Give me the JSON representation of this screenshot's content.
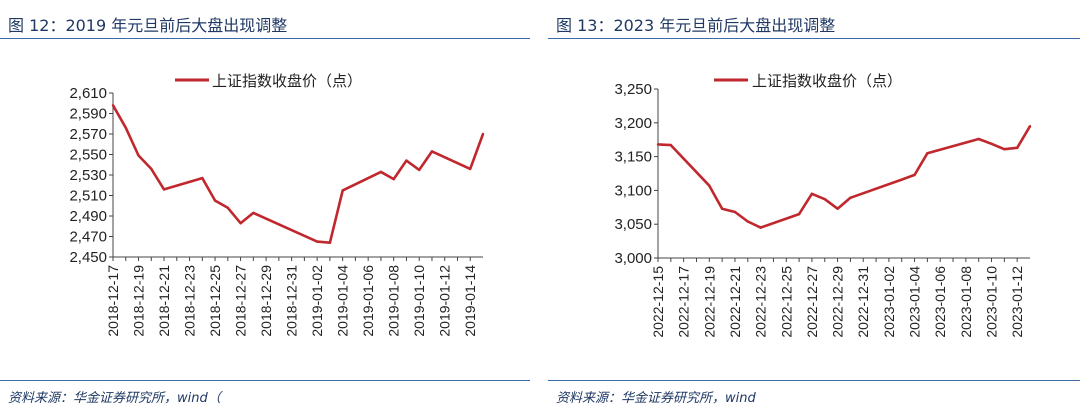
{
  "panels": [
    {
      "title": "图 12：2019 年元旦前后大盘出现调整",
      "source": "资料来源：华金证券研究所，wind（",
      "chart_data": {
        "type": "line",
        "legend": "上证指数收盘价（点）",
        "legend_position": "top-center",
        "color": "#c0282d",
        "ylim": [
          2450,
          2610
        ],
        "yticks": [
          "2,450",
          "2,470",
          "2,490",
          "2,510",
          "2,530",
          "2,550",
          "2,570",
          "2,590",
          "2,610"
        ],
        "xlabels": [
          "2018-12-17",
          "2018-12-19",
          "2018-12-21",
          "2018-12-23",
          "2018-12-25",
          "2018-12-27",
          "2018-12-29",
          "2018-12-31",
          "2019-01-02",
          "2019-01-04",
          "2019-01-06",
          "2019-01-08",
          "2019-01-10",
          "2019-01-12",
          "2019-01-14"
        ],
        "x": [
          "2018-12-17",
          "2018-12-18",
          "2018-12-19",
          "2018-12-20",
          "2018-12-21",
          "2018-12-24",
          "2018-12-25",
          "2018-12-26",
          "2018-12-27",
          "2018-12-28",
          "2019-01-02",
          "2019-01-03",
          "2019-01-04",
          "2019-01-07",
          "2019-01-08",
          "2019-01-09",
          "2019-01-10",
          "2019-01-11",
          "2019-01-14",
          "2019-01-15"
        ],
        "values": [
          2598,
          2576,
          2549,
          2536,
          2516,
          2527,
          2505,
          2498,
          2483,
          2493,
          2465,
          2464,
          2515,
          2533,
          2526,
          2544,
          2535,
          2553,
          2536,
          2570
        ]
      }
    },
    {
      "title": "图 13：2023 年元旦前后大盘出现调整",
      "source": "资料来源：华金证券研究所，wind",
      "chart_data": {
        "type": "line",
        "legend": "上证指数收盘价（点）",
        "legend_position": "top-center",
        "color": "#c0282d",
        "ylim": [
          3000,
          3250
        ],
        "yticks": [
          "3,000",
          "3,050",
          "3,100",
          "3,150",
          "3,200",
          "3,250"
        ],
        "xlabels": [
          "2022-12-15",
          "2022-12-17",
          "2022-12-19",
          "2022-12-21",
          "2022-12-23",
          "2022-12-25",
          "2022-12-27",
          "2022-12-29",
          "2022-12-31",
          "2023-01-02",
          "2023-01-04",
          "2023-01-06",
          "2023-01-08",
          "2023-01-10",
          "2023-01-12"
        ],
        "x": [
          "2022-12-15",
          "2022-12-16",
          "2022-12-19",
          "2022-12-20",
          "2022-12-21",
          "2022-12-22",
          "2022-12-23",
          "2022-12-26",
          "2022-12-27",
          "2022-12-28",
          "2022-12-29",
          "2022-12-30",
          "2023-01-03",
          "2023-01-04",
          "2023-01-05",
          "2023-01-09",
          "2023-01-10",
          "2023-01-11",
          "2023-01-12",
          "2023-01-13"
        ],
        "values": [
          3168,
          3167,
          3107,
          3073,
          3068,
          3054,
          3045,
          3065,
          3095,
          3087,
          3073,
          3089,
          3116,
          3123,
          3155,
          3176,
          3169,
          3161,
          3163,
          3195
        ]
      }
    }
  ]
}
